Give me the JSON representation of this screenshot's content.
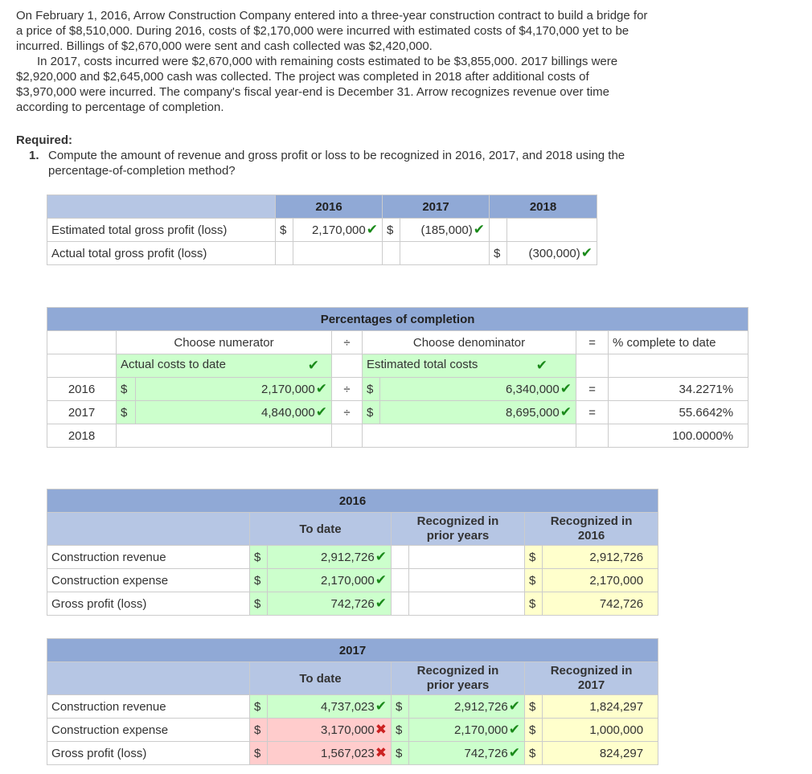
{
  "intro": {
    "p1": "On February 1, 2016, Arrow Construction Company entered into a three-year construction contract to build a bridge for a price of $8,510,000. During 2016, costs of $2,170,000 were incurred with estimated costs of $4,170,000 yet to be incurred. Billings of $2,670,000 were sent and cash collected was $2,420,000.",
    "p2": "In 2017, costs incurred were $2,670,000 with remaining costs estimated to be $3,855,000. 2017 billings were $2,920,000 and $2,645,000 cash was collected. The project was completed in 2018 after additional costs of $3,970,000 were incurred. The company's fiscal year-end is December 31. Arrow recognizes revenue over time according to percentage of completion."
  },
  "required": {
    "label": "Required:",
    "q1_num": "1.",
    "q1_text": "Compute the amount of revenue and gross profit or loss to be recognized in 2016, 2017, and 2018 using the percentage-of-completion method?"
  },
  "gross_profit_table": {
    "years": [
      "2016",
      "2017",
      "2018"
    ],
    "row1_label": "Estimated total gross profit (loss)",
    "row2_label": "Actual total gross profit (loss)",
    "dollar": "$",
    "est_2016": "2,170,000",
    "est_2017": "(185,000)",
    "actual_2018": "(300,000)"
  },
  "pct_table": {
    "title": "Percentages of completion",
    "numerator_header": "Choose numerator",
    "divide": "÷",
    "denominator_header": "Choose denominator",
    "equals": "=",
    "result_header": "% complete to date",
    "numerator_choice": "Actual costs to date",
    "denominator_choice": "Estimated total costs",
    "dollar": "$",
    "rows": [
      {
        "year": "2016",
        "numerator": "2,170,000",
        "denominator": "6,340,000",
        "percent": "34.2271%"
      },
      {
        "year": "2017",
        "numerator": "4,840,000",
        "denominator": "8,695,000",
        "percent": "55.6642%"
      },
      {
        "year": "2018",
        "percent": "100.0000%"
      }
    ]
  },
  "table_2016": {
    "year": "2016",
    "col_to_date": "To date",
    "col_prior_line1": "Recognized in",
    "col_prior_line2": "prior years",
    "col_recog_line1": "Recognized in",
    "col_recog_line2": "2016",
    "dollar": "$",
    "rows": [
      {
        "label": "Construction revenue",
        "to_date": "2,912,726",
        "recognized": "2,912,726"
      },
      {
        "label": "Construction expense",
        "to_date": "2,170,000",
        "recognized": "2,170,000"
      },
      {
        "label": "Gross profit (loss)",
        "to_date": "742,726",
        "recognized": "742,726"
      }
    ]
  },
  "table_2017": {
    "year": "2017",
    "col_to_date": "To date",
    "col_prior_line1": "Recognized in",
    "col_prior_line2": "prior years",
    "col_recog_line1": "Recognized in",
    "col_recog_line2": "2017",
    "dollar": "$",
    "rows": [
      {
        "label": "Construction revenue",
        "to_date": "4,737,023",
        "prior": "2,912,726",
        "recognized": "1,824,297"
      },
      {
        "label": "Construction expense",
        "to_date": "3,170,000",
        "prior": "2,170,000",
        "recognized": "1,000,000"
      },
      {
        "label": "Gross profit (loss)",
        "to_date": "1,567,023",
        "prior": "742,726",
        "recognized": "824,297"
      }
    ]
  },
  "marks": {
    "check_symbol": "✔",
    "cross_symbol": "✖"
  },
  "colors": {
    "header_blue": "#90a9d6",
    "correct_green": "#ccffcc",
    "wrong_pink": "#ffcccc",
    "computed_yellow": "#ffffcc"
  }
}
